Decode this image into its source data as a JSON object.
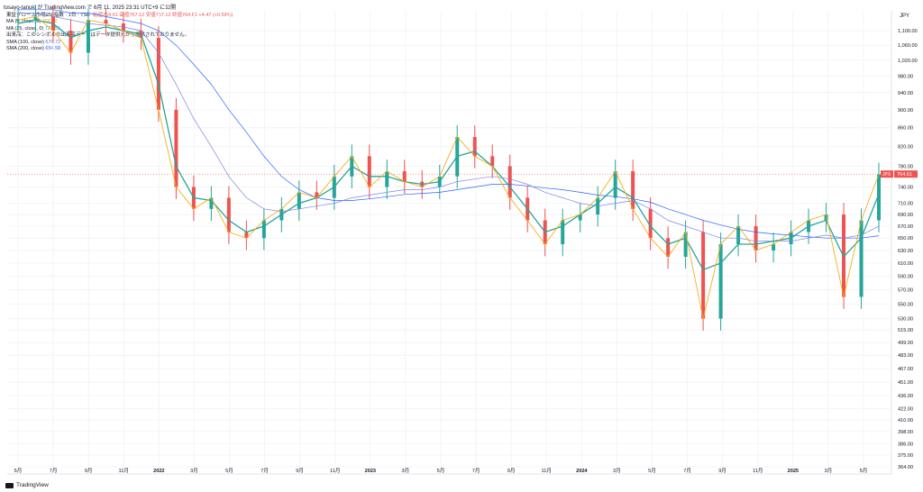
{
  "header": {
    "publisher": "tosayo-tanuki が TradingView.com で 6月 11, 2025 23:31 UTC+9 に公開"
  },
  "legend": {
    "title": "東証グロース市場250指数 · 1日 · TSE",
    "ohlc": "始値764.61  高値767.12  安値757.12  終値764.61  +4.47 (+0.59%)",
    "ma5": {
      "label": "MA (5, close, 0)",
      "value": "758.62",
      "color": "#f7a600"
    },
    "ma25": {
      "label": "MA (25, close, 0)",
      "value": "727.55",
      "color": "#26a69a"
    },
    "notice": "出来高：このシンボルの出来高データはデータ提供元から提供されておりません。",
    "sma100": {
      "label": "SMA (100, close)",
      "value": "670.72",
      "color": "#5b6ee1"
    },
    "sma200": {
      "label": "SMA (200, close)",
      "value": "654.58",
      "color": "#2962ff"
    }
  },
  "axis": {
    "currency": "JPY",
    "price_tag_left": "JPX",
    "price_tag_value": "764.61",
    "last_price": 764.61
  },
  "branding": {
    "logo_text": "TradingView"
  },
  "chart_data": {
    "type": "line",
    "yticks": [
      1100,
      1060,
      1020,
      980,
      940,
      900,
      860,
      820,
      780,
      740,
      710,
      690,
      670,
      650,
      630,
      610,
      590,
      570,
      550,
      530,
      515,
      499,
      483,
      467,
      451,
      436,
      422,
      410,
      398,
      386,
      375,
      364
    ],
    "ytick_labels": [
      "1,100.00",
      "1,060.00",
      "1,020.00",
      "980.00",
      "940.00",
      "900.00",
      "860.00",
      "820.00",
      "780.00",
      "740.00",
      "710.00",
      "690.00",
      "670.00",
      "650.00",
      "630.00",
      "610.00",
      "590.00",
      "570.00",
      "550.00",
      "530.00",
      "515.00",
      "499.00",
      "483.00",
      "467.00",
      "451.00",
      "436.00",
      "422.00",
      "410.00",
      "398.00",
      "386.00",
      "375.00",
      "364.00"
    ],
    "yscale": "log",
    "xticks": [
      "5月",
      "7月",
      "9月",
      "11月",
      "2022",
      "3月",
      "5月",
      "7月",
      "9月",
      "11月",
      "2023",
      "3月",
      "5月",
      "7月",
      "9月",
      "11月",
      "2024",
      "3月",
      "5月",
      "7月",
      "9月",
      "11月",
      "2025",
      "3月",
      "5月"
    ],
    "price_series": {
      "name": "東証グロース市場250指数",
      "x": [
        "2021-05",
        "2021-06",
        "2021-07",
        "2021-08",
        "2021-09",
        "2021-10",
        "2021-11",
        "2021-12",
        "2022-01",
        "2022-02",
        "2022-03",
        "2022-04",
        "2022-05",
        "2022-06",
        "2022-07",
        "2022-08",
        "2022-09",
        "2022-10",
        "2022-11",
        "2022-12",
        "2023-01",
        "2023-02",
        "2023-03",
        "2023-04",
        "2023-05",
        "2023-06",
        "2023-07",
        "2023-08",
        "2023-09",
        "2023-10",
        "2023-11",
        "2023-12",
        "2024-01",
        "2024-02",
        "2024-03",
        "2024-04",
        "2024-05",
        "2024-06",
        "2024-07",
        "2024-08",
        "2024-09",
        "2024-10",
        "2024-11",
        "2024-12",
        "2025-01",
        "2025-02",
        "2025-03",
        "2025-04",
        "2025-05",
        "2025-06"
      ],
      "values": [
        1130,
        1140,
        1100,
        1040,
        1130,
        1120,
        1100,
        1080,
        900,
        740,
        700,
        720,
        660,
        650,
        680,
        700,
        730,
        720,
        760,
        800,
        740,
        770,
        750,
        740,
        760,
        840,
        800,
        780,
        720,
        680,
        640,
        680,
        690,
        720,
        770,
        700,
        650,
        620,
        660,
        530,
        640,
        670,
        630,
        640,
        660,
        680,
        690,
        560,
        680,
        764
      ]
    },
    "ma25_values": [
      1120,
      1130,
      1120,
      1080,
      1100,
      1110,
      1100,
      1090,
      960,
      780,
      720,
      715,
      680,
      660,
      670,
      690,
      710,
      720,
      740,
      780,
      760,
      760,
      750,
      745,
      750,
      800,
      810,
      780,
      740,
      700,
      660,
      670,
      690,
      710,
      740,
      720,
      670,
      640,
      650,
      600,
      610,
      640,
      640,
      645,
      650,
      670,
      680,
      620,
      650,
      727
    ],
    "sma100_values": [
      1150,
      1150,
      1140,
      1130,
      1120,
      1115,
      1110,
      1100,
      1040,
      960,
      880,
      820,
      760,
      720,
      700,
      695,
      700,
      705,
      710,
      720,
      725,
      730,
      735,
      735,
      740,
      750,
      755,
      760,
      755,
      745,
      730,
      720,
      710,
      705,
      710,
      715,
      700,
      680,
      670,
      660,
      650,
      650,
      645,
      645,
      645,
      650,
      655,
      650,
      655,
      670
    ],
    "sma200_values": [
      1160,
      1160,
      1160,
      1150,
      1150,
      1140,
      1130,
      1120,
      1100,
      1060,
      1010,
      960,
      900,
      850,
      800,
      760,
      735,
      720,
      715,
      715,
      718,
      722,
      726,
      728,
      730,
      735,
      740,
      745,
      745,
      742,
      738,
      735,
      730,
      725,
      722,
      718,
      712,
      700,
      690,
      680,
      672,
      665,
      660,
      657,
      655,
      652,
      650,
      650,
      650,
      654
    ]
  }
}
